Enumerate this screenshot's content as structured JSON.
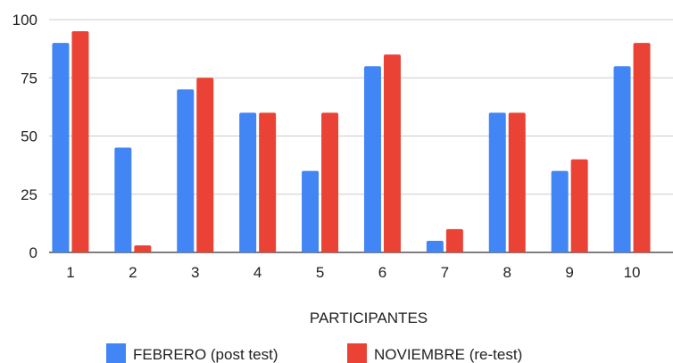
{
  "chart_data": {
    "type": "bar",
    "title": "",
    "xlabel": "PARTICIPANTES",
    "ylabel": "",
    "ylim": [
      0,
      100
    ],
    "yticks": [
      0,
      25,
      50,
      75,
      100
    ],
    "grid": true,
    "legend_position": "bottom",
    "categories": [
      "1",
      "2",
      "3",
      "4",
      "5",
      "6",
      "7",
      "8",
      "9",
      "10"
    ],
    "series": [
      {
        "name": "FEBRERO (post test)",
        "color": "#4285F4",
        "values": [
          90,
          45,
          70,
          60,
          35,
          80,
          5,
          60,
          35,
          80
        ]
      },
      {
        "name": "NOVIEMBRE (re-test)",
        "color": "#EA4335",
        "values": [
          95,
          3,
          75,
          60,
          60,
          85,
          10,
          60,
          40,
          90
        ]
      }
    ]
  }
}
